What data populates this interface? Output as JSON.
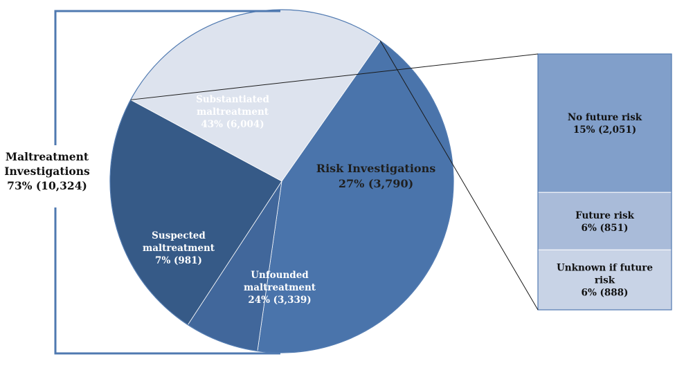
{
  "chart_data": {
    "type": "pie",
    "pie_slices": [
      {
        "id": "substantiated",
        "lines": [
          "Substantiated",
          "maltreatment",
          "43% (6,004)"
        ],
        "percent": 43,
        "count": 6004,
        "color": "#4a74ab"
      },
      {
        "id": "suspected",
        "lines": [
          "Suspected",
          "maltreatment",
          "7% (981)"
        ],
        "percent": 7,
        "count": 981,
        "color": "#41679b"
      },
      {
        "id": "unfounded",
        "lines": [
          "Unfounded",
          "maltreatment",
          "24% (3,339)"
        ],
        "percent": 24,
        "count": 3339,
        "color": "#365a87"
      },
      {
        "id": "risk",
        "lines": [
          "Risk Investigations",
          "27% (3,790)"
        ],
        "percent": 27,
        "count": 3790,
        "color": "#dde3ee"
      }
    ],
    "group_label": {
      "lines": [
        "Maltreatment",
        "Investigations",
        "73% (10,324)"
      ],
      "percent": 73,
      "count": 10324
    },
    "breakdown": {
      "type": "stacked-bar",
      "of": "risk",
      "segments": [
        {
          "id": "no-future-risk",
          "lines": [
            "No future risk",
            "15% (2,051)"
          ],
          "percent": 15,
          "count": 2051,
          "color": "#819fca"
        },
        {
          "id": "future-risk",
          "lines": [
            "Future risk",
            "6% (851)"
          ],
          "percent": 6,
          "count": 851,
          "color": "#a9bbd9"
        },
        {
          "id": "unknown-future-risk",
          "lines": [
            "Unknown if future",
            "risk",
            "6% (888)"
          ],
          "percent": 6,
          "count": 888,
          "color": "#c8d3e6"
        }
      ]
    }
  }
}
